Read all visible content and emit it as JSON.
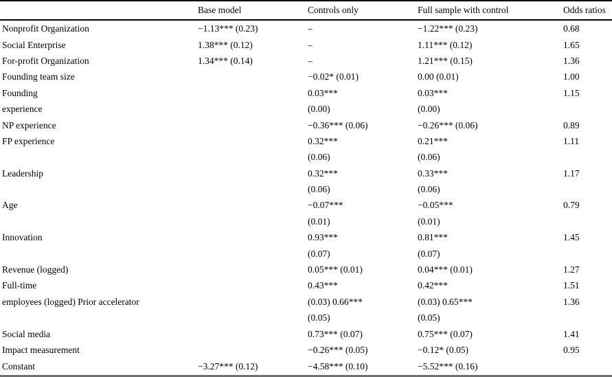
{
  "table": {
    "columns": [
      "",
      "Base model",
      "Controls only",
      "Full sample with control",
      "Odds ratios"
    ],
    "rows": [
      {
        "label": "Nonprofit Organization",
        "base": "−1.13*** (0.23)",
        "controls": "–",
        "full": "−1.22*** (0.23)",
        "odds": "0.68"
      },
      {
        "label": "Social Enterprise",
        "base": "1.38*** (0.12)",
        "controls": "–",
        "full": "1.11*** (0.12)",
        "odds": "1.65"
      },
      {
        "label": "For-profit Organization",
        "base": "1.34*** (0.14)",
        "controls": "–",
        "full": "1.21*** (0.15)",
        "odds": "1.36"
      },
      {
        "label": "Founding team size",
        "base": "",
        "controls": "−0.02* (0.01)",
        "full": "0.00 (0.01)",
        "odds": "1.00"
      },
      {
        "label": "Founding",
        "base": "",
        "controls": "0.03***",
        "full": "0.03***",
        "odds": "1.15"
      },
      {
        "label": "experience",
        "base": "",
        "controls": "(0.00)",
        "full": "(0.00)",
        "odds": ""
      },
      {
        "label": "NP experience",
        "base": "",
        "controls": "−0.36*** (0.06)",
        "full": "−0.26*** (0.06)",
        "odds": "0.89"
      },
      {
        "label": "FP experience",
        "base": "",
        "controls": "0.32***",
        "full": "0.21***",
        "odds": "1.11"
      },
      {
        "label": "",
        "base": "",
        "controls": "(0.06)",
        "full": "(0.06)",
        "odds": ""
      },
      {
        "label": "Leadership",
        "base": "",
        "controls": "0.32***",
        "full": "0.33***",
        "odds": "1.17"
      },
      {
        "label": "",
        "base": "",
        "controls": "(0.06)",
        "full": "(0.06)",
        "odds": ""
      },
      {
        "label": "Age",
        "base": "",
        "controls": "−0.07***",
        "full": "−0.05***",
        "odds": "0.79"
      },
      {
        "label": "",
        "base": "",
        "controls": "(0.01)",
        "full": "(0.01)",
        "odds": ""
      },
      {
        "label": "Innovation",
        "base": "",
        "controls": "0.93***",
        "full": "0.81***",
        "odds": "1.45"
      },
      {
        "label": "",
        "base": "",
        "controls": "(0.07)",
        "full": "(0.07)",
        "odds": ""
      },
      {
        "label": "Revenue (logged)",
        "base": "",
        "controls": "0.05*** (0.01)",
        "full": "0.04*** (0.01)",
        "odds": "1.27"
      },
      {
        "label": "Full-time",
        "base": "",
        "controls": "0.43***",
        "full": "0.42***",
        "odds": "1.51"
      },
      {
        "label": "employees (logged) Prior accelerator",
        "base": "",
        "controls": "(0.03) 0.66***",
        "full": "(0.03) 0.65***",
        "odds": "1.36"
      },
      {
        "label": "",
        "base": "",
        "controls": "(0.05)",
        "full": "(0.05)",
        "odds": ""
      },
      {
        "label": "Social media",
        "base": "",
        "controls": "0.73*** (0.07)",
        "full": "0.75*** (0.07)",
        "odds": "1.41"
      },
      {
        "label": "Impact measurement",
        "base": "",
        "controls": "−0.26*** (0.05)",
        "full": "−0.12* (0.05)",
        "odds": "0.95"
      },
      {
        "label": "Constant",
        "base": "−3.27*** (0.12)",
        "controls": "−4.58*** (0.10)",
        "full": "−5.52*** (0.16)",
        "odds": ""
      }
    ]
  },
  "colors": {
    "background": "#ffffff",
    "text": "#000000",
    "rule_top": "#000000",
    "rule_header": "#000000",
    "rule_bottom": "#6f6f6f"
  }
}
